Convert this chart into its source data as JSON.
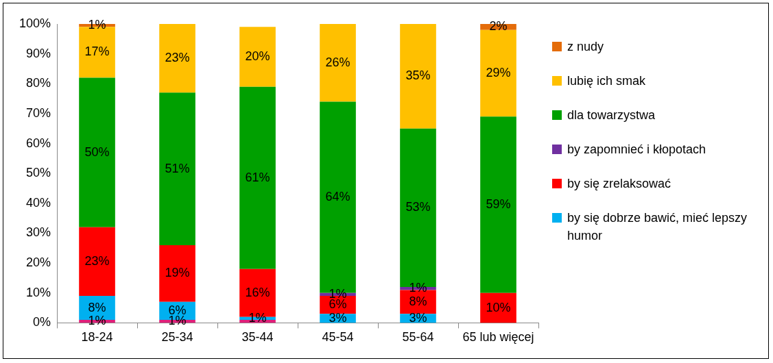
{
  "chart_data": {
    "type": "bar",
    "stacked": true,
    "categories": [
      "18-24",
      "25-34",
      "35-44",
      "45-54",
      "55-64",
      "65 lub więcej"
    ],
    "series": [
      {
        "color": "#e0207a",
        "values": [
          1,
          1,
          1,
          null,
          null,
          null
        ],
        "value_labels": [
          "1%",
          "1%",
          null,
          null,
          null,
          null
        ]
      },
      {
        "name": "by się dobrze bawić, mieć lepszy humor",
        "color": "#00b0f0",
        "values": [
          8,
          6,
          1,
          3,
          3,
          null
        ],
        "value_labels": [
          "8%",
          "6%",
          "1%",
          "3%",
          "3%",
          null
        ]
      },
      {
        "name": "by się zrelaksować",
        "color": "#ff0000",
        "values": [
          23,
          19,
          16,
          6,
          8,
          10
        ],
        "value_labels": [
          "23%",
          "19%",
          "16%",
          "6%",
          "8%",
          "10%"
        ]
      },
      {
        "name": "by zapomnieć i kłopotach",
        "color": "#7030a0",
        "values": [
          null,
          null,
          null,
          1,
          1,
          null
        ],
        "value_labels": [
          null,
          null,
          null,
          "1%",
          "1%",
          null
        ]
      },
      {
        "name": "dla towarzystwa",
        "color": "#00a000",
        "values": [
          50,
          51,
          61,
          64,
          53,
          59
        ],
        "value_labels": [
          "50%",
          "51%",
          "61%",
          "64%",
          "53%",
          "59%"
        ]
      },
      {
        "name": "lubię ich smak",
        "color": "#ffc000",
        "values": [
          17,
          23,
          20,
          26,
          35,
          29
        ],
        "value_labels": [
          "17%",
          "23%",
          "20%",
          "26%",
          "35%",
          "29%"
        ]
      },
      {
        "name": "z nudy",
        "color": "#e46c0a",
        "values": [
          1,
          null,
          null,
          null,
          null,
          2
        ],
        "value_labels": [
          "1%",
          null,
          null,
          null,
          null,
          "2%"
        ]
      }
    ],
    "ylim": [
      0,
      100
    ],
    "yticks": [
      {
        "value": 0,
        "label": "0%"
      },
      {
        "value": 10,
        "label": "10%"
      },
      {
        "value": 20,
        "label": "20%"
      },
      {
        "value": 30,
        "label": "30%"
      },
      {
        "value": 40,
        "label": "40%"
      },
      {
        "value": 50,
        "label": "50%"
      },
      {
        "value": 60,
        "label": "60%"
      },
      {
        "value": 70,
        "label": "70%"
      },
      {
        "value": 80,
        "label": "80%"
      },
      {
        "value": 90,
        "label": "90%"
      },
      {
        "value": 100,
        "label": "100%"
      }
    ],
    "grid": false,
    "legend": "right"
  }
}
